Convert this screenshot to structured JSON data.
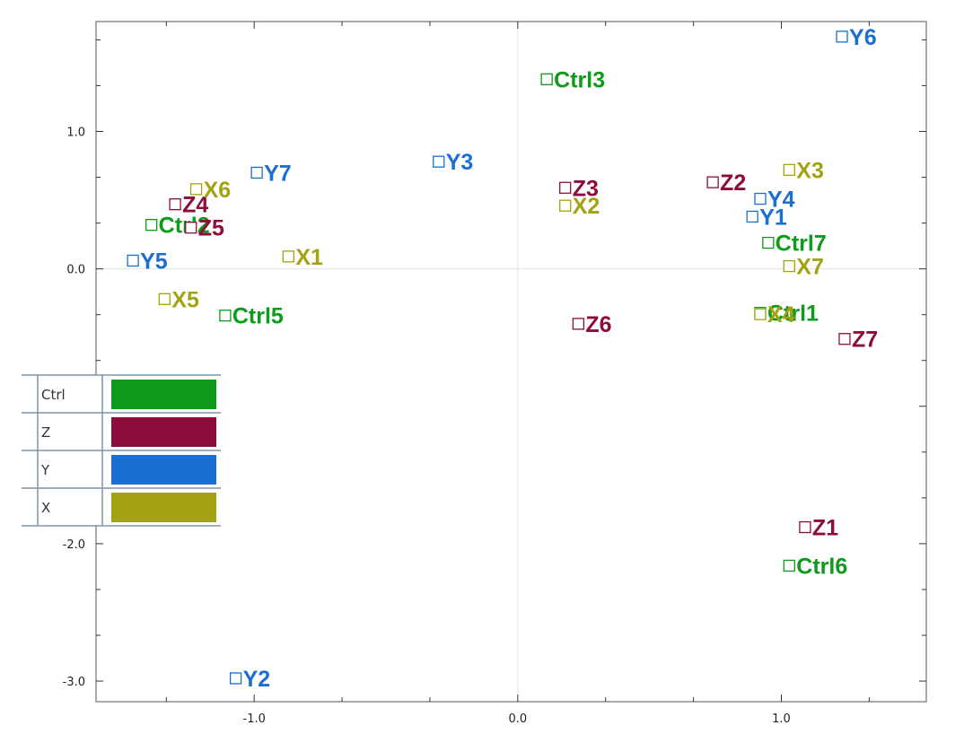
{
  "chart_data": {
    "type": "scatter",
    "title": "",
    "xlabel": "",
    "ylabel": "",
    "xlim": [
      -1.6,
      1.55
    ],
    "ylim": [
      -3.15,
      1.8
    ],
    "x_ticks": [
      -1.0,
      0.0,
      1.0
    ],
    "x_tick_labels": [
      "-1.0",
      "0.0",
      "1.0"
    ],
    "y_ticks": [
      1.0,
      0.0,
      -2.0,
      -3.0
    ],
    "y_tick_labels": [
      "1.0",
      "0.0",
      "-2.0",
      "-3.0"
    ],
    "grid": false,
    "zero_lines": true,
    "legend_position": "left",
    "series": [
      {
        "name": "Ctrl",
        "color": "#0e9a1a",
        "points": [
          {
            "label": "Ctrl1",
            "x": 0.92,
            "y": -0.32
          },
          {
            "label": "Ctrl2",
            "x": -1.39,
            "y": 0.32
          },
          {
            "label": "Ctrl3",
            "x": 0.11,
            "y": 1.38
          },
          {
            "label": "Ctrl5",
            "x": -1.11,
            "y": -0.34
          },
          {
            "label": "Ctrl6",
            "x": 1.03,
            "y": -2.16
          },
          {
            "label": "Ctrl7",
            "x": 0.95,
            "y": 0.19
          }
        ]
      },
      {
        "name": "Z",
        "color": "#8c0d3d",
        "points": [
          {
            "label": "Z1",
            "x": 1.09,
            "y": -1.88
          },
          {
            "label": "Z2",
            "x": 0.74,
            "y": 0.63
          },
          {
            "label": "Z3",
            "x": 0.18,
            "y": 0.59
          },
          {
            "label": "Z4",
            "x": -1.3,
            "y": 0.47
          },
          {
            "label": "Z5",
            "x": -1.24,
            "y": 0.3
          },
          {
            "label": "Z6",
            "x": 0.23,
            "y": -0.4
          },
          {
            "label": "Z7",
            "x": 1.24,
            "y": -0.51
          }
        ]
      },
      {
        "name": "Y",
        "color": "#1a6fd0",
        "points": [
          {
            "label": "Y1",
            "x": 0.89,
            "y": 0.38
          },
          {
            "label": "Y2",
            "x": -1.07,
            "y": -2.98
          },
          {
            "label": "Y3",
            "x": -0.3,
            "y": 0.78
          },
          {
            "label": "Y4",
            "x": 0.92,
            "y": 0.51
          },
          {
            "label": "Y5",
            "x": -1.46,
            "y": 0.06
          },
          {
            "label": "Y6",
            "x": 1.23,
            "y": 1.69
          },
          {
            "label": "Y7",
            "x": -0.99,
            "y": 0.7
          }
        ]
      },
      {
        "name": "X",
        "color": "#a3a312",
        "points": [
          {
            "label": "X1",
            "x": -0.87,
            "y": 0.09
          },
          {
            "label": "X2",
            "x": 0.18,
            "y": 0.46
          },
          {
            "label": "X3",
            "x": 1.03,
            "y": 0.72
          },
          {
            "label": "X4",
            "x": 0.92,
            "y": -0.33
          },
          {
            "label": "X5",
            "x": -1.34,
            "y": -0.22
          },
          {
            "label": "X6",
            "x": -1.22,
            "y": 0.58
          },
          {
            "label": "X7",
            "x": 1.03,
            "y": 0.02
          }
        ]
      }
    ]
  }
}
